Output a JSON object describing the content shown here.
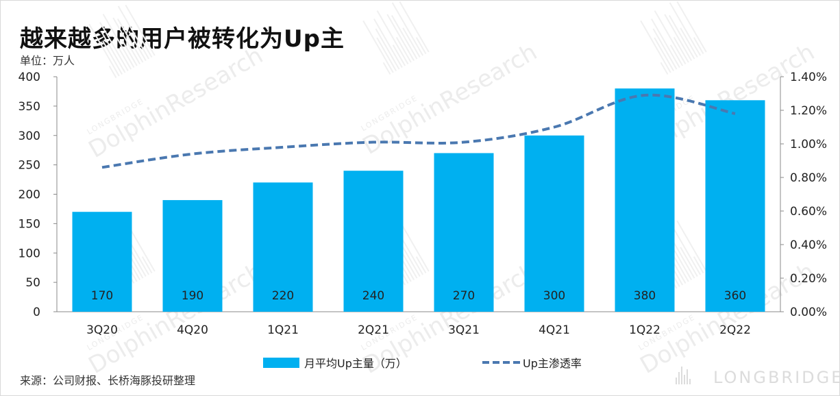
{
  "title": "越来越多的用户被转化为Up主",
  "unit_label": "单位：万人",
  "source": "来源：公司财报、长桥海豚投研整理",
  "watermark": {
    "main": "DolphinResearch",
    "sub": "LONGBRIDGE"
  },
  "brand_logo": "LONGBRIDGE",
  "colors": {
    "bar": "#00b0f0",
    "line": "#4a78b0",
    "axis": "#888888"
  },
  "chart_data": {
    "type": "bar",
    "categories": [
      "3Q20",
      "4Q20",
      "1Q21",
      "2Q21",
      "3Q21",
      "4Q21",
      "1Q22",
      "2Q22"
    ],
    "series": [
      {
        "name": "月平均Up主量（万）",
        "type": "bar",
        "axis": "left",
        "values": [
          170,
          190,
          220,
          240,
          270,
          300,
          380,
          360
        ]
      },
      {
        "name": "Up主渗透率",
        "type": "line",
        "style": "dashed",
        "axis": "right",
        "values": [
          0.86,
          0.94,
          0.98,
          1.01,
          1.01,
          1.1,
          1.29,
          1.18
        ]
      }
    ],
    "y_left": {
      "min": 0,
      "max": 400,
      "ticks": [
        "0",
        "50",
        "100",
        "150",
        "200",
        "250",
        "300",
        "350",
        "400"
      ]
    },
    "y_right": {
      "min": 0,
      "max": 1.4,
      "ticks": [
        "0.00%",
        "0.20%",
        "0.40%",
        "0.60%",
        "0.80%",
        "1.00%",
        "1.20%",
        "1.40%"
      ]
    },
    "data_labels": [
      "170",
      "190",
      "220",
      "240",
      "270",
      "300",
      "380",
      "360"
    ],
    "legend_position": "bottom",
    "grid": false
  }
}
